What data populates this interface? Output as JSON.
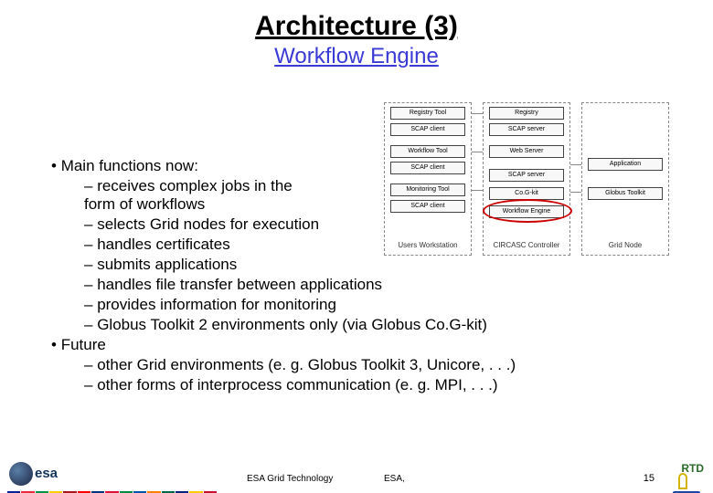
{
  "title": "Architecture (3)",
  "subtitle": "Workflow Engine",
  "title_color": "#000000",
  "subtitle_color": "#3a3ad6",
  "bullets": {
    "main1": "Main functions now:",
    "s1": "receives complex jobs in the form of workflows",
    "s2": "selects Grid nodes for execution",
    "s3": "handles certificates",
    "s4": "submits applications",
    "s5": "handles file transfer between applications",
    "s6": "provides information for monitoring",
    "s7": "Globus Toolkit 2 environments only (via Globus Co.G-kit)",
    "main2": "Future",
    "s8": "other Grid environments (e. g. Globus Toolkit 3, Unicore, . . .)",
    "s9": "other forms of interprocess communication (e. g. MPI, . . .)"
  },
  "diagram": {
    "col1_label": "Users Workstation",
    "col2_label": "CIRCASC Controller",
    "col3_label": "Grid Node",
    "col1_boxes": [
      "Registry Tool",
      "SCAP client",
      "Workflow Tool",
      "SCAP client",
      "Monitoring Tool",
      "SCAP client"
    ],
    "col2_boxes": [
      "Registry",
      "SCAP server",
      "Web Server",
      "SCAP server",
      "Co.G-kit",
      "Workflow Engine"
    ],
    "col3_boxes": [
      "Application",
      "Globus Toolkit"
    ],
    "highlight_color": "#cc0000",
    "box_border": "#444444",
    "dash_border": "#888888"
  },
  "footer": {
    "center": "ESA Grid Technology",
    "center2": "ESA,",
    "page": "15",
    "rtd": "RTD",
    "flag_colors": [
      "#002395",
      "#ed2939",
      "#009246",
      "#ffce00",
      "#aa151b",
      "#ff0000",
      "#003580",
      "#dc143c",
      "#008c45",
      "#0055a4",
      "#ff7f00",
      "#006847",
      "#00247d",
      "#ffcc00",
      "#c8102e"
    ]
  }
}
